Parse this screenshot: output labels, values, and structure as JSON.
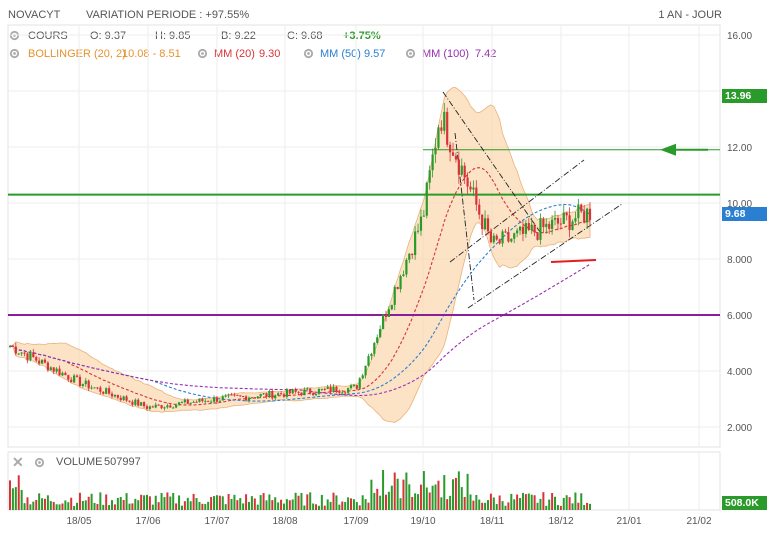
{
  "header": {
    "ticker": "NOVACYT",
    "variation_label": "VARIATION PERIODE : +97.55%",
    "period": "1 AN - JOUR"
  },
  "legend": {
    "cours": {
      "label": "COURS",
      "open": "O: 9.37",
      "high": "H: 9.85",
      "low": "B: 9.22",
      "close": "C: 9.68",
      "change": "+3.75%",
      "change_color": "#2a9a2a"
    },
    "bollinger": {
      "label": "BOLLINGER (20, 2)",
      "values": "10.08 - 8.51",
      "color": "#e8912c"
    },
    "mm20": {
      "label": "MM (20)",
      "value": "9.30",
      "color": "#d9333a"
    },
    "mm50": {
      "label": "MM (50)",
      "value": "9.57",
      "color": "#2a7fd1"
    },
    "mm100": {
      "label": "MM (100)",
      "value": "7.42",
      "color": "#9a2fb0"
    }
  },
  "badges": {
    "level_high": {
      "text": "13.96",
      "color": "#2a9a2a"
    },
    "last_price": {
      "text": "9.68",
      "color": "#2a7fd1"
    },
    "volume_last": {
      "text": "508.0K",
      "color": "#2a9a2a"
    }
  },
  "volume_panel": {
    "label": "VOLUME",
    "value": "507997"
  },
  "chart_data": {
    "type": "candlestick",
    "x_ticks": [
      "18/05",
      "17/06",
      "17/07",
      "18/08",
      "17/09",
      "19/10",
      "18/11",
      "18/12",
      "21/01",
      "21/02"
    ],
    "y_ticks": [
      "16.00",
      "12.00",
      "10.00",
      "8.000",
      "6.000",
      "4.000",
      "2.000"
    ],
    "ylim": [
      1.5,
      16.2
    ],
    "series_close_estimates": [
      {
        "date": "start",
        "close": 4.9
      },
      {
        "date": "18/05",
        "close": 3.6
      },
      {
        "date": "17/06",
        "close": 2.7
      },
      {
        "date": "17/07",
        "close": 3.0
      },
      {
        "date": "18/08",
        "close": 3.2
      },
      {
        "date": "17/09",
        "close": 3.4
      },
      {
        "date": "19/10",
        "close": 9.5
      },
      {
        "date": "peak",
        "close": 13.2
      },
      {
        "date": "18/11",
        "close": 8.5
      },
      {
        "date": "18/12",
        "close": 9.3
      },
      {
        "date": "last",
        "close": 9.68
      }
    ],
    "horizontal_levels": [
      {
        "value": 10.3,
        "color": "#2a9a2a"
      },
      {
        "value": 6.0,
        "color": "#8a1d9a"
      },
      {
        "value": 11.9,
        "color": "#2a9a2a"
      }
    ],
    "grid": true
  }
}
